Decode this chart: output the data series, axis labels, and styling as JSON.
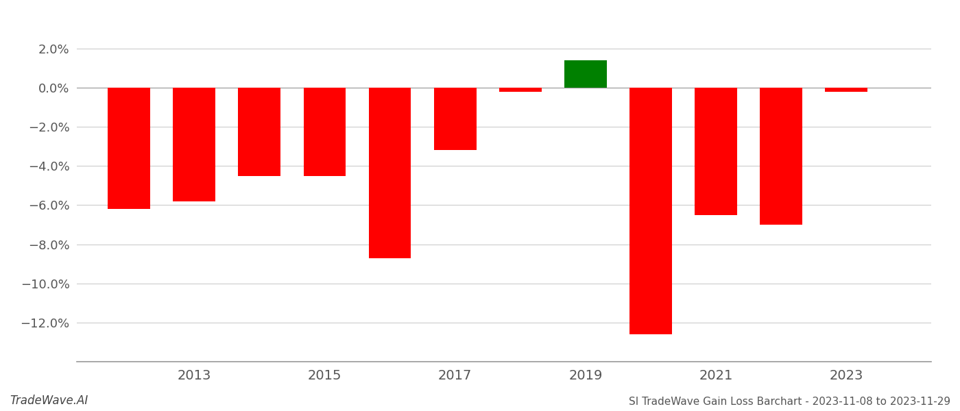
{
  "years": [
    2012,
    2013,
    2014,
    2015,
    2016,
    2017,
    2018,
    2019,
    2020,
    2021,
    2022,
    2023
  ],
  "values": [
    -0.062,
    -0.058,
    -0.045,
    -0.045,
    -0.087,
    -0.032,
    -0.002,
    0.014,
    -0.126,
    -0.065,
    -0.07,
    -0.002
  ],
  "colors": [
    "#ff0000",
    "#ff0000",
    "#ff0000",
    "#ff0000",
    "#ff0000",
    "#ff0000",
    "#ff0000",
    "#008000",
    "#ff0000",
    "#ff0000",
    "#ff0000",
    "#ff0000"
  ],
  "ylim": [
    -0.14,
    0.028
  ],
  "yticks": [
    -0.12,
    -0.1,
    -0.08,
    -0.06,
    -0.04,
    -0.02,
    0.0,
    0.02
  ],
  "xlim": [
    2011.2,
    2024.3
  ],
  "xticks": [
    2013,
    2015,
    2017,
    2019,
    2021,
    2023
  ],
  "watermark": "TradeWave.AI",
  "footer": "SI TradeWave Gain Loss Barchart - 2023-11-08 to 2023-11-29",
  "bar_width": 0.65,
  "background_color": "#ffffff",
  "grid_color": "#cccccc",
  "spine_color": "#999999",
  "tick_label_color": "#555555",
  "footer_color": "#555555"
}
